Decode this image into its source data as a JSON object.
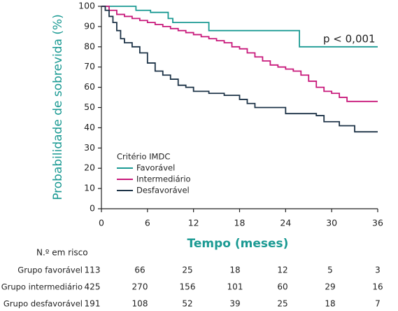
{
  "chart_data": {
    "type": "step",
    "xlabel": "Tempo (meses)",
    "ylabel": "Probabilidade de sobrevida (%)",
    "annotation": "p < 0,001",
    "legend_title": "Critério IMDC",
    "xlim": [
      0,
      36
    ],
    "xticks": [
      0,
      6,
      12,
      18,
      24,
      30,
      36
    ],
    "ylim": [
      0,
      100
    ],
    "yticks": [
      0,
      10,
      20,
      30,
      40,
      50,
      60,
      70,
      80,
      90,
      100
    ],
    "series": [
      {
        "name": "Favorável",
        "color": "#1b9a93",
        "x": [
          0,
          4.5,
          6.4,
          8.7,
          9.3,
          14,
          25.8,
          36
        ],
        "values": [
          100,
          98,
          97,
          94,
          92,
          88,
          80,
          80
        ]
      },
      {
        "name": "Intermediário",
        "color": "#c8197b",
        "x": [
          0,
          1,
          2,
          3,
          4,
          5,
          6,
          7,
          8,
          9,
          10,
          11,
          12,
          13,
          14,
          15,
          16,
          17,
          18,
          19,
          20,
          21,
          22,
          23,
          24,
          25,
          26,
          27,
          28,
          29,
          30,
          31,
          32,
          36
        ],
        "values": [
          100,
          98,
          96,
          95,
          94,
          93,
          92,
          91,
          90,
          89,
          88,
          87,
          86,
          85,
          84,
          83,
          82,
          80,
          79,
          77,
          75,
          73,
          71,
          70,
          69,
          68,
          66,
          63,
          60,
          58,
          57,
          55,
          53,
          53
        ]
      },
      {
        "name": "Desfavorável",
        "color": "#1d3347",
        "x": [
          0,
          0.5,
          1,
          1.5,
          2,
          2.5,
          3,
          4,
          5,
          6,
          7,
          8,
          9,
          10,
          11,
          12,
          14,
          16,
          18,
          19,
          20,
          24,
          28,
          29,
          31,
          33,
          36
        ],
        "values": [
          100,
          98,
          95,
          92,
          88,
          84,
          82,
          80,
          77,
          72,
          68,
          66,
          64,
          61,
          60,
          58,
          57,
          56,
          54,
          52,
          50,
          47,
          46,
          43,
          41,
          38,
          38
        ]
      }
    ],
    "risk_table": {
      "title": "N.º em risco",
      "rows": [
        {
          "label": "Grupo favorável",
          "values": [
            113,
            66,
            25,
            18,
            12,
            5,
            3
          ]
        },
        {
          "label": "Grupo intermediário",
          "values": [
            425,
            270,
            156,
            101,
            60,
            29,
            16
          ]
        },
        {
          "label": "Grupo desfavorável",
          "values": [
            191,
            108,
            52,
            39,
            25,
            18,
            7
          ]
        }
      ]
    }
  }
}
